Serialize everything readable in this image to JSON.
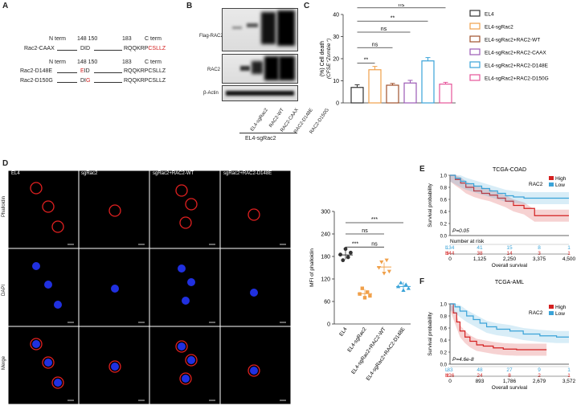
{
  "panel_letters": {
    "a": "A",
    "b": "B",
    "c": "C",
    "d": "D",
    "e": "E",
    "f": "F"
  },
  "panelA": {
    "header1": {
      "nterm": "N term",
      "p148_150": "148 150",
      "p183": "183",
      "cterm": "C term"
    },
    "caax": {
      "label": "Rac2-CAAX",
      "mid": "DID",
      "tail_black": "RQQKRP",
      "tail_red": "CSLLZ"
    },
    "header2": {
      "nterm": "N term",
      "p148_150": "148 150",
      "p183": "183",
      "cterm": "C term"
    },
    "d148e": {
      "label": "Rac2-D148E",
      "mid_red": "E",
      "mid_black": "ID",
      "tail": "RQQKRPCSLLZ"
    },
    "d150g": {
      "label": "Rac2-D150G",
      "mid_black": "DI",
      "mid_red": "G",
      "tail": "RQQKRPCSLLZ"
    }
  },
  "panelB": {
    "rows": [
      "Flag-RAC2",
      "RAC2",
      "β-Actin"
    ],
    "lanes": [
      "EL4-sgRac2",
      "RAC2-WT",
      "RAC2-CAAX",
      "RAC2-D148E",
      "RAC2-D150G"
    ],
    "group": "EL4-sgRac2"
  },
  "panelC": {
    "ylabel": "(%) Cell death\n(CFSE⁺Zombie⁺)",
    "legend": [
      "EL4",
      "EL4-sgRac2",
      "EL4-sgRac2+RAC2-WT",
      "EL4-sgRac2+RAC2-CAAX",
      "EL4-sgRac2+RAC2-D148E",
      "EL4-sgRac2+RAC2-D150G"
    ],
    "sig": [
      "**",
      "ns",
      "ns",
      "**",
      "ns"
    ]
  },
  "panelD": {
    "col_titles": [
      "EL4",
      "sgRac2",
      "sgRac2+RAC2-WT",
      "sgRac2+RAC2-D148E"
    ],
    "row_titles": [
      "Phalloidin",
      "DAPI",
      "Merge"
    ],
    "sig": [
      "***",
      "ns",
      "ns",
      "***"
    ]
  },
  "colors": {
    "el4": "#333333",
    "sgrac2": "#f0a04a",
    "wt": "#a0522d",
    "caax": "#9b59b6",
    "d148e": "#3aa3d8",
    "d150g": "#e6559a",
    "high": "#d42020",
    "low": "#3aa3d8"
  },
  "chart_data": [
    {
      "type": "bar",
      "panel": "C",
      "categories": [
        "EL4",
        "EL4-sgRac2",
        "EL4-sgRac2+RAC2-WT",
        "EL4-sgRac2+RAC2-CAAX",
        "EL4-sgRac2+RAC2-D148E",
        "EL4-sgRac2+RAC2-D150G"
      ],
      "values": [
        7,
        15,
        8,
        9,
        19,
        8.5
      ],
      "errors": [
        1.2,
        1.5,
        0.8,
        1.2,
        1.5,
        0.8
      ],
      "ylabel": "(%) Cell death (CFSE⁺Zombie⁺)",
      "yticks": [
        0,
        10,
        20,
        30,
        40
      ],
      "ylim": [
        0,
        40
      ],
      "legend": "right"
    },
    {
      "type": "scatter",
      "panel": "D",
      "categories": [
        "EL4",
        "EL4-sgRac2",
        "EL4-sgRac2+RAC2-WT",
        "EL4-sgRac2+RAC2-D148E"
      ],
      "points": [
        [
          185,
          170,
          200,
          178,
          190
        ],
        [
          80,
          95,
          70,
          85,
          75
        ],
        [
          150,
          165,
          135,
          170,
          140
        ],
        [
          100,
          110,
          90,
          105,
          95
        ]
      ],
      "means": [
        184,
        81,
        152,
        100
      ],
      "ylabel": "MFI of phalloidin",
      "yticks": [
        0,
        60,
        120,
        180,
        240,
        300
      ],
      "ylim": [
        0,
        300
      ]
    },
    {
      "type": "line",
      "panel": "E",
      "title": "TCGA-COAD",
      "legend_title": "RAC2",
      "series_names": [
        "High",
        "Low"
      ],
      "ylabel": "Survival probability",
      "xlabel": "Overall survival",
      "xticks": [
        "0",
        "1,125",
        "2,250",
        "3,375",
        "4,500"
      ],
      "yticks": [
        "0.0",
        "0.2",
        "0.4",
        "0.6",
        "0.8",
        "1.0"
      ],
      "pvalue": "P=0.05",
      "risk_title": "Number at risk",
      "risk_rows": [
        {
          "label": "L",
          "values": [
            "134",
            "41",
            "15",
            "8",
            "1"
          ]
        },
        {
          "label": "H",
          "values": [
            "144",
            "38",
            "14",
            "3",
            "1"
          ]
        }
      ],
      "series": [
        {
          "name": "High",
          "x": [
            0,
            200,
            400,
            600,
            900,
            1200,
            1500,
            1800,
            2100,
            2400,
            2800,
            3200,
            3600,
            4500
          ],
          "y": [
            1.0,
            0.93,
            0.87,
            0.8,
            0.74,
            0.7,
            0.67,
            0.62,
            0.57,
            0.5,
            0.45,
            0.33,
            0.33,
            0.33
          ]
        },
        {
          "name": "Low",
          "x": [
            0,
            200,
            400,
            600,
            900,
            1200,
            1500,
            1800,
            2100,
            2400,
            2800,
            3200,
            3600,
            4500
          ],
          "y": [
            1.0,
            0.95,
            0.9,
            0.86,
            0.82,
            0.78,
            0.74,
            0.7,
            0.66,
            0.64,
            0.62,
            0.62,
            0.62,
            0.62
          ]
        }
      ],
      "xlim": [
        0,
        4500
      ],
      "ylim": [
        0,
        1
      ]
    },
    {
      "type": "line",
      "panel": "F",
      "title": "TCGA-AML",
      "legend_title": "RAC2",
      "series_names": [
        "High",
        "Low"
      ],
      "ylabel": "Survival probability",
      "xlabel": "Overall survival",
      "xticks": [
        "0",
        "893",
        "1,786",
        "2,679",
        "3,572"
      ],
      "yticks": [
        "0.0",
        "0.2",
        "0.4",
        "0.6",
        "0.8",
        "1.0"
      ],
      "pvalue": "P=4.6e-8",
      "risk_rows": [
        {
          "label": "L",
          "values": [
            "83",
            "48",
            "27",
            "9",
            "1"
          ]
        },
        {
          "label": "H",
          "values": [
            "126",
            "24",
            "8",
            "2",
            "1"
          ]
        }
      ],
      "series": [
        {
          "name": "High",
          "x": [
            0,
            100,
            200,
            300,
            450,
            600,
            800,
            1000,
            1300,
            1600,
            2000,
            2400,
            2900
          ],
          "y": [
            1.0,
            0.85,
            0.7,
            0.55,
            0.45,
            0.38,
            0.32,
            0.3,
            0.27,
            0.25,
            0.24,
            0.24,
            0.24
          ]
        },
        {
          "name": "Low",
          "x": [
            0,
            150,
            300,
            500,
            700,
            900,
            1100,
            1400,
            1800,
            2200,
            2700,
            3200,
            3572
          ],
          "y": [
            1.0,
            0.95,
            0.88,
            0.8,
            0.74,
            0.68,
            0.62,
            0.58,
            0.55,
            0.5,
            0.47,
            0.45,
            0.45
          ]
        }
      ],
      "xlim": [
        0,
        3572
      ],
      "ylim": [
        0,
        1
      ]
    }
  ]
}
